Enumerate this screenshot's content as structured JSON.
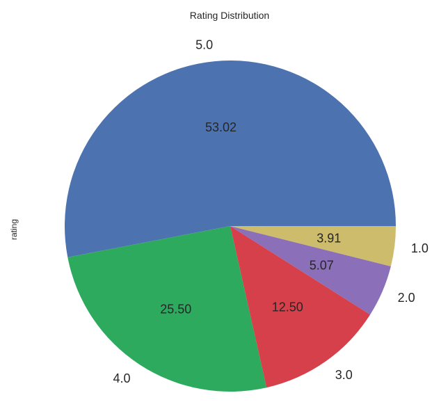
{
  "chart_data": {
    "type": "pie",
    "title": "Rating Distribution",
    "ylabel": "rating",
    "categories": [
      "5.0",
      "4.0",
      "3.0",
      "2.0",
      "1.0"
    ],
    "values": [
      53.02,
      25.5,
      12.5,
      5.07,
      3.91
    ],
    "value_labels": [
      "53.02",
      "25.50",
      "12.50",
      "5.07",
      "3.91"
    ],
    "colors": [
      "#4c72b0",
      "#2eaa5f",
      "#d5404a",
      "#8b6fb9",
      "#cdbc6b"
    ],
    "start_angle_deg": 0,
    "direction": "counterclockwise",
    "legend": "none"
  }
}
